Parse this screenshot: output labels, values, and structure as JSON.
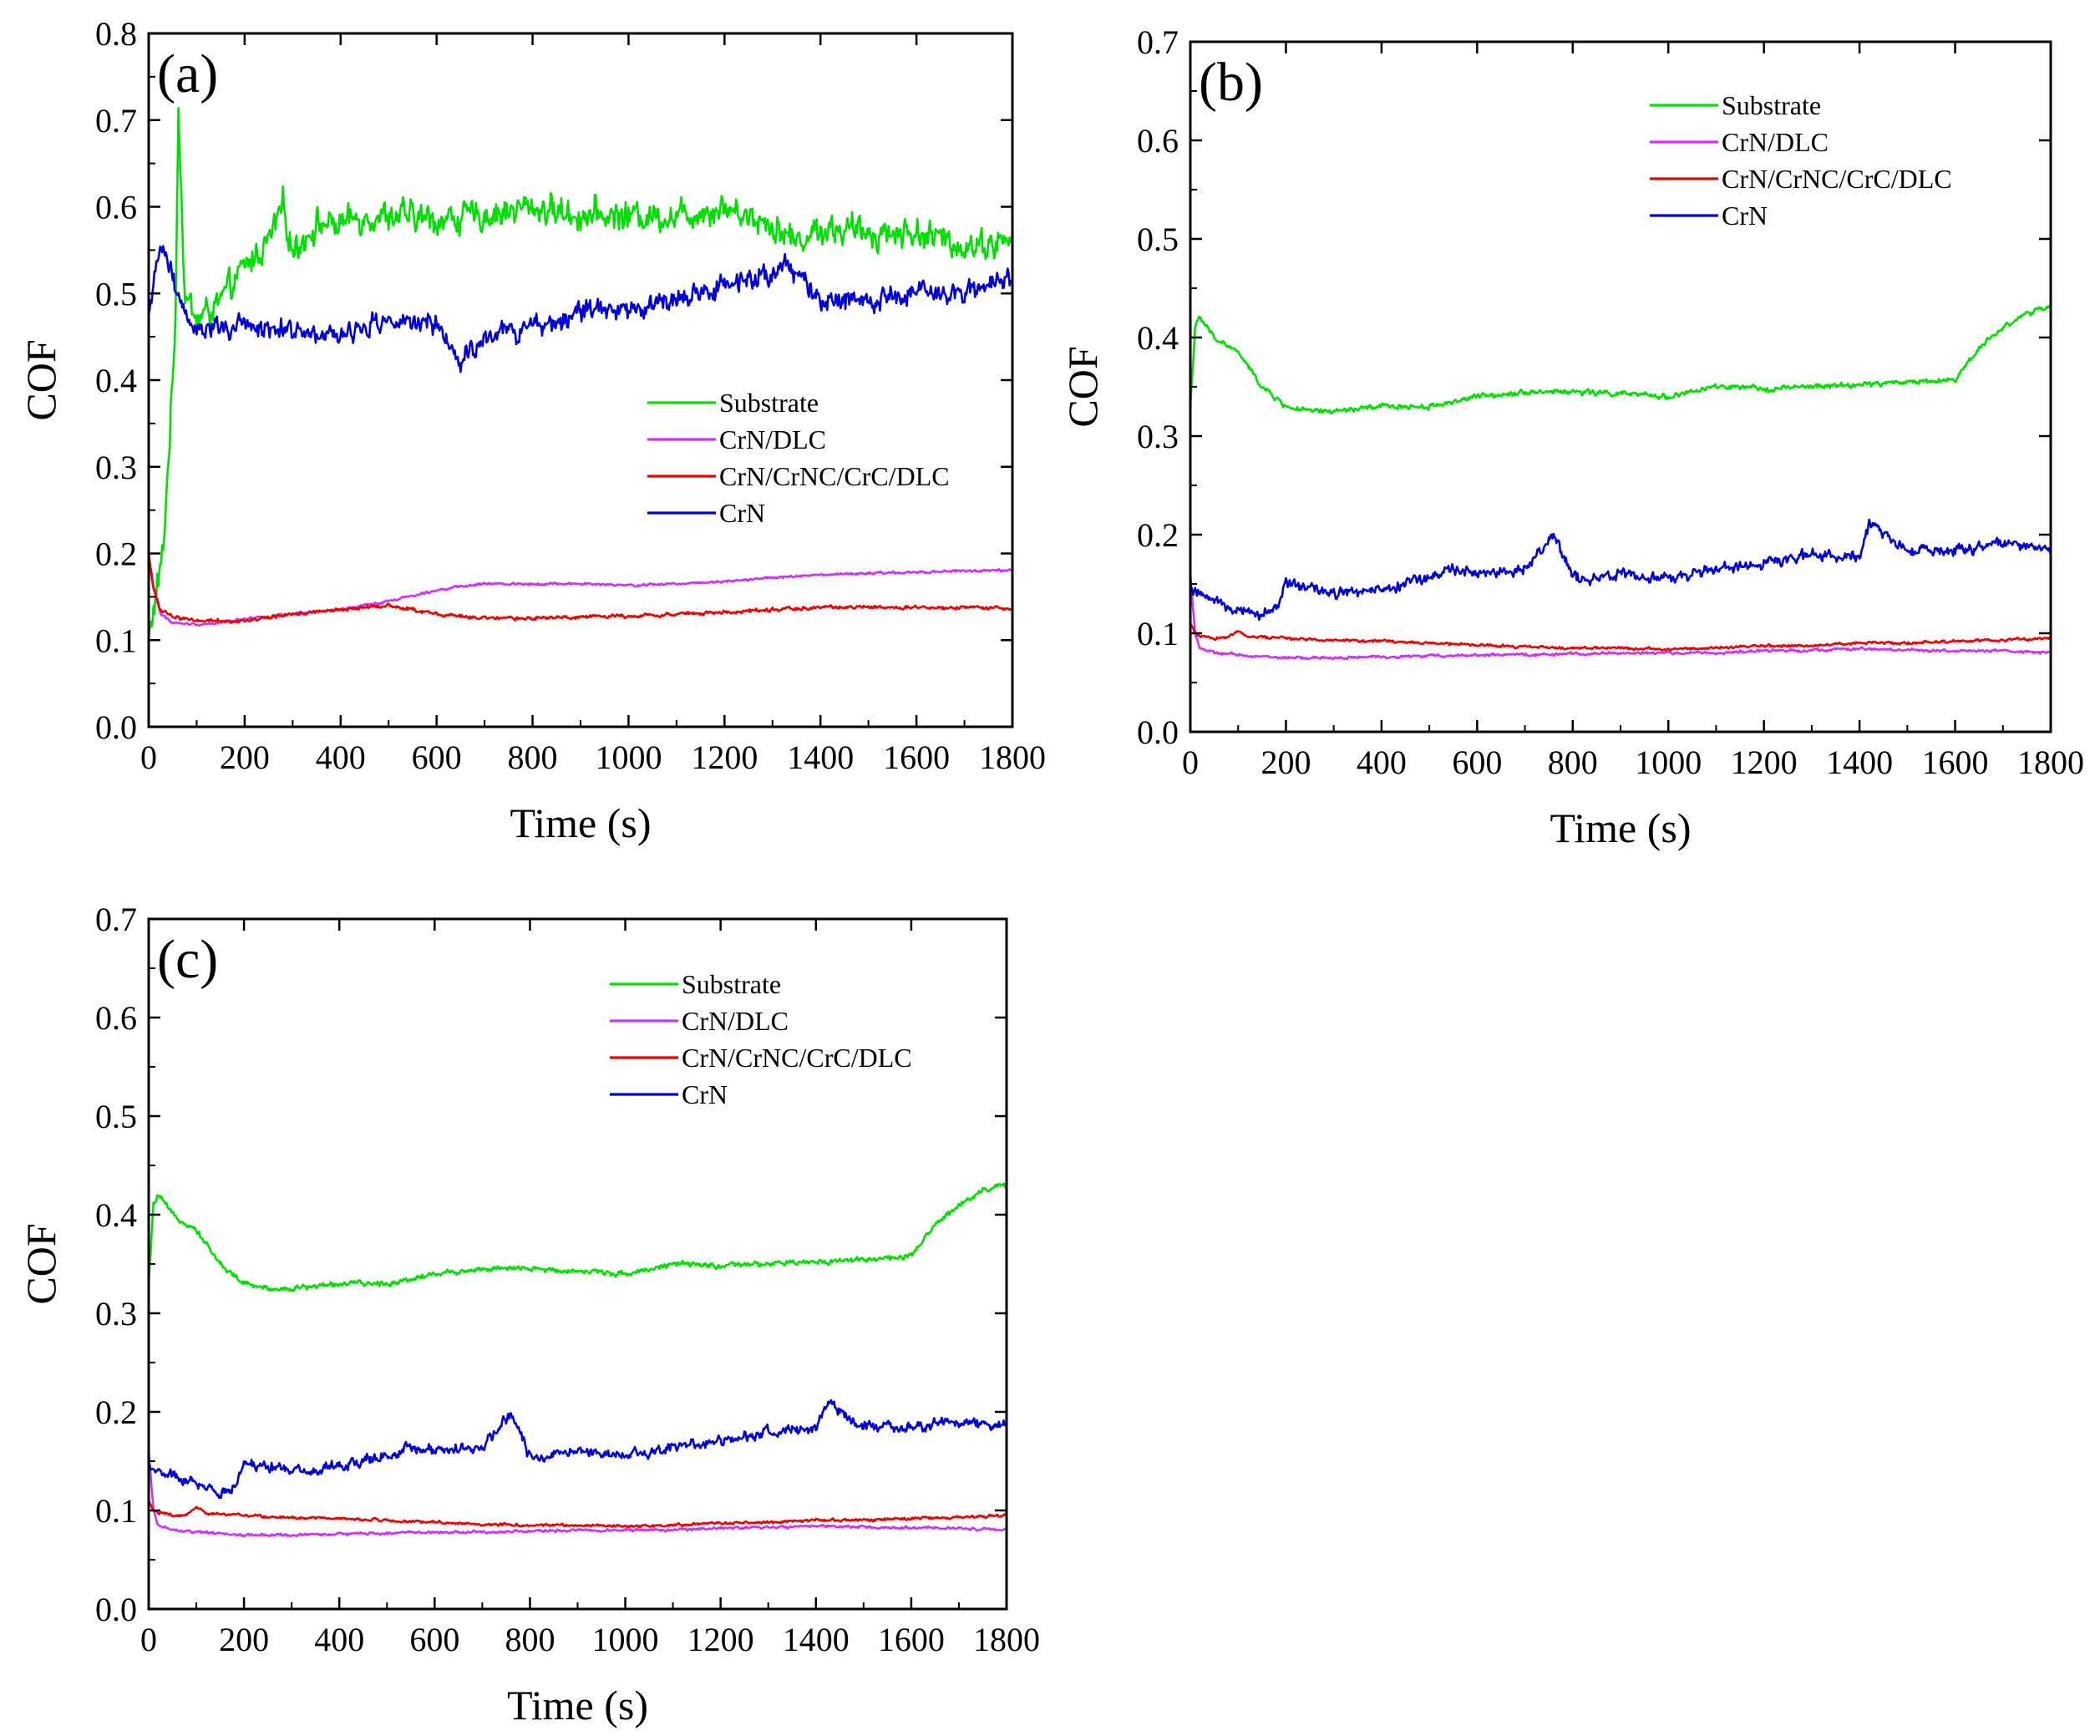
{
  "figure": {
    "legend_entries": [
      "Substrate",
      "CrN/DLC",
      "CrN/CrNC/CrC/DLC",
      "CrN"
    ],
    "colors": {
      "Substrate": "#00e000",
      "CrN/DLC": "#cc33ff",
      "CrN/CrNC/CrC/DLC": "#ee0000",
      "CrN": "#0000dd"
    }
  },
  "chart_data": [
    {
      "id": "a",
      "type": "line",
      "panel_label": "(a)",
      "xlabel": "Time (s)",
      "ylabel": "COF",
      "xlim": [
        0,
        1800
      ],
      "ylim": [
        0,
        0.8
      ],
      "xticks": [
        0,
        200,
        400,
        600,
        800,
        1000,
        1200,
        1400,
        1600,
        1800
      ],
      "yticks": [
        "0.0",
        "0.1",
        "0.2",
        "0.3",
        "0.4",
        "0.5",
        "0.6",
        "0.7",
        "0.8"
      ],
      "legend_position": "center-right",
      "series": [
        {
          "name": "Substrate",
          "color": "#00e000",
          "noise": 0.025,
          "x": [
            0,
            30,
            55,
            62,
            75,
            100,
            150,
            200,
            250,
            280,
            300,
            350,
            400,
            450,
            500,
            600,
            700,
            800,
            900,
            1000,
            1100,
            1200,
            1300,
            1350,
            1400,
            1500,
            1600,
            1700,
            1800
          ],
          "y": [
            0.1,
            0.2,
            0.45,
            0.72,
            0.5,
            0.47,
            0.49,
            0.53,
            0.56,
            0.6,
            0.55,
            0.58,
            0.58,
            0.59,
            0.59,
            0.585,
            0.59,
            0.6,
            0.59,
            0.59,
            0.59,
            0.6,
            0.58,
            0.56,
            0.575,
            0.57,
            0.57,
            0.555,
            0.56
          ]
        },
        {
          "name": "CrN/DLC",
          "color": "#cc33ff",
          "noise": 0.002,
          "x": [
            0,
            10,
            25,
            50,
            100,
            150,
            200,
            300,
            400,
            500,
            600,
            700,
            800,
            900,
            1000,
            1100,
            1200,
            1300,
            1400,
            1500,
            1600,
            1700,
            1800
          ],
          "y": [
            0.19,
            0.16,
            0.13,
            0.12,
            0.118,
            0.12,
            0.125,
            0.13,
            0.135,
            0.145,
            0.158,
            0.165,
            0.165,
            0.165,
            0.163,
            0.165,
            0.168,
            0.172,
            0.175,
            0.177,
            0.178,
            0.18,
            0.18
          ]
        },
        {
          "name": "CrN/CrNC/CrC/DLC",
          "color": "#ee0000",
          "noise": 0.003,
          "x": [
            0,
            10,
            25,
            50,
            100,
            200,
            300,
            400,
            500,
            600,
            700,
            800,
            900,
            1000,
            1100,
            1200,
            1300,
            1400,
            1500,
            1600,
            1700,
            1800
          ],
          "y": [
            0.2,
            0.16,
            0.135,
            0.127,
            0.123,
            0.122,
            0.13,
            0.135,
            0.14,
            0.13,
            0.125,
            0.125,
            0.127,
            0.128,
            0.13,
            0.132,
            0.135,
            0.138,
            0.138,
            0.137,
            0.137,
            0.137
          ]
        },
        {
          "name": "CrN",
          "color": "#0000dd",
          "noise": 0.018,
          "x": [
            0,
            15,
            30,
            60,
            100,
            150,
            200,
            300,
            400,
            500,
            600,
            650,
            700,
            800,
            900,
            1000,
            1100,
            1200,
            1300,
            1330,
            1400,
            1500,
            1600,
            1700,
            1800
          ],
          "y": [
            0.47,
            0.52,
            0.56,
            0.5,
            0.46,
            0.46,
            0.46,
            0.46,
            0.45,
            0.47,
            0.46,
            0.42,
            0.45,
            0.46,
            0.48,
            0.48,
            0.49,
            0.51,
            0.52,
            0.54,
            0.49,
            0.49,
            0.5,
            0.5,
            0.52
          ]
        }
      ]
    },
    {
      "id": "b",
      "type": "line",
      "panel_label": "(b)",
      "xlabel": "Time (s)",
      "ylabel": "COF",
      "xlim": [
        0,
        1800
      ],
      "ylim": [
        0,
        0.7
      ],
      "xticks": [
        0,
        200,
        400,
        600,
        800,
        1000,
        1200,
        1400,
        1600,
        1800
      ],
      "yticks": [
        "0.0",
        "0.1",
        "0.2",
        "0.3",
        "0.4",
        "0.5",
        "0.6",
        "0.7"
      ],
      "legend_position": "top-right",
      "series": [
        {
          "name": "Substrate",
          "color": "#00e000",
          "noise": 0.004,
          "x": [
            0,
            10,
            20,
            50,
            100,
            150,
            200,
            250,
            300,
            400,
            500,
            600,
            700,
            800,
            900,
            1000,
            1100,
            1200,
            1300,
            1400,
            1500,
            1600,
            1650,
            1700,
            1750,
            1800
          ],
          "y": [
            0.33,
            0.41,
            0.42,
            0.4,
            0.385,
            0.35,
            0.33,
            0.325,
            0.325,
            0.33,
            0.33,
            0.34,
            0.345,
            0.345,
            0.343,
            0.34,
            0.35,
            0.348,
            0.35,
            0.352,
            0.355,
            0.357,
            0.39,
            0.41,
            0.425,
            0.43
          ]
        },
        {
          "name": "CrN/DLC",
          "color": "#cc33ff",
          "noise": 0.002,
          "x": [
            0,
            10,
            20,
            50,
            100,
            200,
            300,
            400,
            500,
            600,
            700,
            800,
            900,
            1000,
            1100,
            1200,
            1300,
            1400,
            1500,
            1600,
            1700,
            1800
          ],
          "y": [
            0.16,
            0.1,
            0.085,
            0.08,
            0.078,
            0.075,
            0.075,
            0.076,
            0.077,
            0.078,
            0.078,
            0.079,
            0.08,
            0.08,
            0.08,
            0.082,
            0.083,
            0.084,
            0.083,
            0.082,
            0.082,
            0.08
          ]
        },
        {
          "name": "CrN/CrNC/CrC/DLC",
          "color": "#ee0000",
          "noise": 0.002,
          "x": [
            0,
            10,
            20,
            50,
            80,
            100,
            120,
            200,
            300,
            400,
            500,
            600,
            700,
            800,
            900,
            1000,
            1100,
            1200,
            1300,
            1400,
            1500,
            1600,
            1700,
            1800
          ],
          "y": [
            0.11,
            0.1,
            0.098,
            0.095,
            0.096,
            0.103,
            0.097,
            0.095,
            0.093,
            0.092,
            0.09,
            0.088,
            0.086,
            0.085,
            0.085,
            0.084,
            0.085,
            0.087,
            0.088,
            0.09,
            0.09,
            0.092,
            0.093,
            0.095
          ]
        },
        {
          "name": "CrN",
          "color": "#0000dd",
          "noise": 0.008,
          "x": [
            0,
            10,
            20,
            50,
            100,
            150,
            180,
            200,
            300,
            400,
            500,
            550,
            600,
            700,
            760,
            800,
            900,
            1000,
            1100,
            1200,
            1300,
            1400,
            1420,
            1500,
            1600,
            1700,
            1800
          ],
          "y": [
            0.145,
            0.14,
            0.14,
            0.135,
            0.125,
            0.118,
            0.125,
            0.15,
            0.14,
            0.145,
            0.155,
            0.165,
            0.16,
            0.165,
            0.2,
            0.155,
            0.16,
            0.155,
            0.165,
            0.17,
            0.18,
            0.18,
            0.21,
            0.185,
            0.185,
            0.19,
            0.185
          ]
        }
      ]
    },
    {
      "id": "c",
      "type": "line",
      "panel_label": "(c)",
      "xlabel": "Time (s)",
      "ylabel": "COF",
      "xlim": [
        0,
        1800
      ],
      "ylim": [
        0,
        0.7
      ],
      "xticks": [
        0,
        200,
        400,
        600,
        800,
        1000,
        1200,
        1400,
        1600,
        1800
      ],
      "yticks": [
        "0.0",
        "0.1",
        "0.2",
        "0.3",
        "0.4",
        "0.5",
        "0.6",
        "0.7"
      ],
      "legend_position": "top-right",
      "series": [
        {
          "name": "Substrate",
          "color": "#00e000",
          "noise": 0.004,
          "x": [
            0,
            10,
            20,
            50,
            100,
            150,
            200,
            250,
            300,
            400,
            500,
            600,
            700,
            800,
            900,
            1000,
            1100,
            1200,
            1300,
            1400,
            1500,
            1600,
            1650,
            1700,
            1750,
            1800
          ],
          "y": [
            0.33,
            0.41,
            0.42,
            0.4,
            0.385,
            0.35,
            0.33,
            0.325,
            0.325,
            0.33,
            0.33,
            0.34,
            0.345,
            0.345,
            0.343,
            0.34,
            0.35,
            0.348,
            0.35,
            0.352,
            0.355,
            0.357,
            0.39,
            0.41,
            0.425,
            0.43
          ]
        },
        {
          "name": "CrN/DLC",
          "color": "#cc33ff",
          "noise": 0.002,
          "x": [
            0,
            10,
            20,
            50,
            100,
            200,
            300,
            400,
            500,
            600,
            700,
            800,
            900,
            1000,
            1100,
            1200,
            1300,
            1400,
            1500,
            1600,
            1700,
            1800
          ],
          "y": [
            0.16,
            0.1,
            0.085,
            0.08,
            0.078,
            0.075,
            0.075,
            0.076,
            0.077,
            0.078,
            0.078,
            0.079,
            0.08,
            0.08,
            0.08,
            0.082,
            0.083,
            0.084,
            0.083,
            0.082,
            0.082,
            0.08
          ]
        },
        {
          "name": "CrN/CrNC/CrC/DLC",
          "color": "#ee0000",
          "noise": 0.002,
          "x": [
            0,
            10,
            20,
            50,
            80,
            100,
            120,
            200,
            300,
            400,
            500,
            600,
            700,
            800,
            900,
            1000,
            1100,
            1200,
            1300,
            1400,
            1500,
            1600,
            1700,
            1800
          ],
          "y": [
            0.11,
            0.1,
            0.098,
            0.095,
            0.096,
            0.103,
            0.097,
            0.095,
            0.093,
            0.092,
            0.09,
            0.088,
            0.086,
            0.085,
            0.085,
            0.084,
            0.085,
            0.087,
            0.088,
            0.09,
            0.09,
            0.092,
            0.093,
            0.095
          ]
        },
        {
          "name": "CrN",
          "color": "#0000dd",
          "noise": 0.008,
          "x": [
            0,
            10,
            20,
            50,
            100,
            150,
            180,
            200,
            300,
            400,
            500,
            550,
            600,
            700,
            760,
            800,
            900,
            1000,
            1100,
            1200,
            1300,
            1400,
            1420,
            1500,
            1600,
            1700,
            1800
          ],
          "y": [
            0.145,
            0.14,
            0.14,
            0.135,
            0.125,
            0.118,
            0.125,
            0.15,
            0.14,
            0.145,
            0.155,
            0.165,
            0.16,
            0.165,
            0.2,
            0.155,
            0.16,
            0.155,
            0.165,
            0.17,
            0.18,
            0.18,
            0.21,
            0.185,
            0.185,
            0.19,
            0.185
          ]
        }
      ]
    }
  ]
}
